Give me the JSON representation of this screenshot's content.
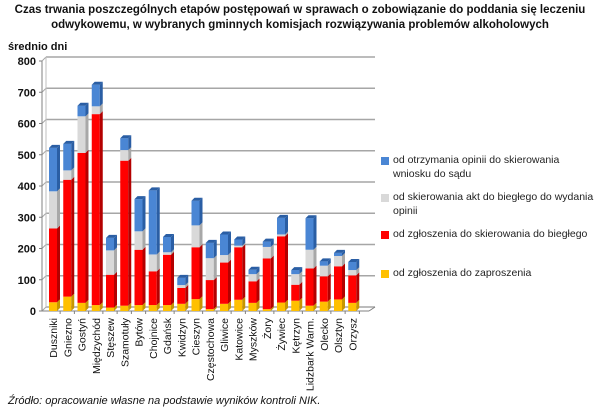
{
  "title_line1": "Czas trwania poszczególnych etapów postępowań w sprawach o zobowiązanie do poddania się leczeniu",
  "title_line2": "odwykowemu, w wybranych gminnych komisjach rozwiązywania problemów alkoholowych",
  "source": "Źródło: opracowanie własne na podstawie wyników kontroli NIK.",
  "chart_data": {
    "type": "bar",
    "stacked": true,
    "ylabel": "średnio dni",
    "ylim": [
      0,
      800
    ],
    "yticks": [
      0,
      100,
      200,
      300,
      400,
      500,
      600,
      700,
      800
    ],
    "grid": true,
    "legend_placement": "right",
    "categories": [
      "Duszniki",
      "Gniezno",
      "Gostyń",
      "Międzychód",
      "Stęszew",
      "Szamotuły",
      "Bytów",
      "Chojnice",
      "Gdańsk",
      "Kwidzyn",
      "Cieszyn",
      "Częstochowa",
      "Gliwice",
      "Katowice",
      "Myszków",
      "Żory",
      "Żywiec",
      "Kętrzyn",
      "Lidzbark Warm.",
      "Olecko",
      "Olsztyn",
      "Orzysz"
    ],
    "series": [
      {
        "name": "od zgłoszenia do zaproszenia",
        "color": "#ffc000",
        "values": [
          28,
          46,
          26,
          19,
          11,
          17,
          19,
          19,
          19,
          23,
          38,
          6,
          23,
          36,
          26,
          6,
          27,
          33,
          17,
          30,
          37,
          26
        ]
      },
      {
        "name": "od zgłoszenia do skierowania do biegłego",
        "color": "#ff0000",
        "values": [
          236,
          374,
          480,
          611,
          105,
          464,
          177,
          108,
          161,
          51,
          166,
          93,
          132,
          168,
          69,
          162,
          212,
          51,
          119,
          81,
          106,
          88
        ]
      },
      {
        "name": "od skierowania akt do biegłego do wydania opinii",
        "color": "#d9d9d9",
        "values": [
          119,
          30,
          117,
          25,
          78,
          34,
          59,
          54,
          8,
          9,
          70,
          70,
          24,
          5,
          23,
          37,
          6,
          34,
          60,
          34,
          33,
          17
        ]
      },
      {
        "name": "od otrzymania opinii do skierowania wniosku do sądu",
        "color": "#4a86d4",
        "values": [
          139,
          85,
          34,
          69,
          40,
          38,
          103,
          205,
          49,
          23,
          79,
          49,
          66,
          20,
          14,
          17,
          53,
          13,
          101,
          14,
          10,
          26
        ]
      }
    ]
  }
}
